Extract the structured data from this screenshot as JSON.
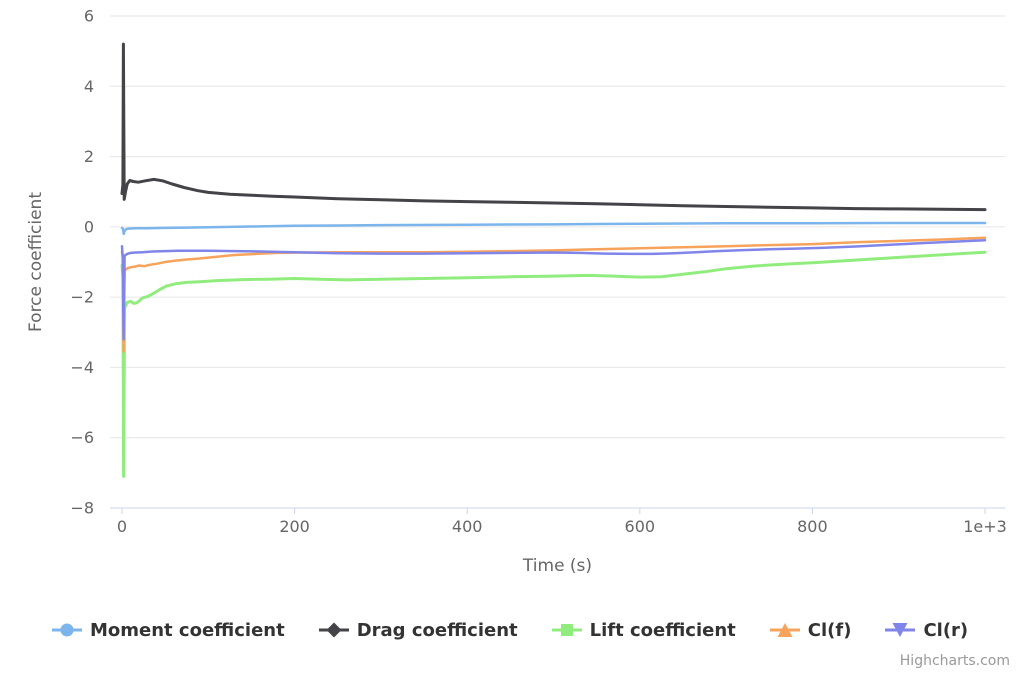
{
  "credits": {
    "label": "Highcharts.com"
  },
  "chart_data": {
    "type": "line",
    "title": "",
    "xlabel": "Time (s)",
    "ylabel": "Force coefficient",
    "xlim": [
      0,
      1000
    ],
    "ylim": [
      -8,
      6
    ],
    "grid": "horizontal",
    "grid_color": "#e6e6e6",
    "axis_line_color": "#ccd6eb",
    "tick_label_color": "#666666",
    "legend_position": "bottom",
    "xticks": [
      {
        "value": 0,
        "label": "0"
      },
      {
        "value": 200,
        "label": "200"
      },
      {
        "value": 400,
        "label": "400"
      },
      {
        "value": 600,
        "label": "600"
      },
      {
        "value": 800,
        "label": "800"
      },
      {
        "value": 1000,
        "label": "1e+3"
      }
    ],
    "yticks": [
      {
        "value": 6,
        "label": "6"
      },
      {
        "value": 4,
        "label": "4"
      },
      {
        "value": 2,
        "label": "2"
      },
      {
        "value": 0,
        "label": "0"
      },
      {
        "value": -2,
        "label": "−2"
      },
      {
        "value": -4,
        "label": "−4"
      },
      {
        "value": -6,
        "label": "−6"
      },
      {
        "value": -8,
        "label": "−8"
      }
    ],
    "series": [
      {
        "name": "Moment coefficient",
        "color": "#7cb5ec",
        "marker": "circle",
        "line_width": 2.5,
        "points": [
          [
            0,
            -0.03
          ],
          [
            1,
            -0.05
          ],
          [
            2,
            -0.2
          ],
          [
            3,
            -0.12
          ],
          [
            5,
            -0.06
          ],
          [
            8,
            -0.05
          ],
          [
            15,
            -0.04
          ],
          [
            30,
            -0.04
          ],
          [
            50,
            -0.03
          ],
          [
            75,
            -0.02
          ],
          [
            100,
            -0.01
          ],
          [
            150,
            0.01
          ],
          [
            200,
            0.03
          ],
          [
            250,
            0.04
          ],
          [
            300,
            0.05
          ],
          [
            400,
            0.06
          ],
          [
            500,
            0.07
          ],
          [
            550,
            0.08
          ],
          [
            600,
            0.09
          ],
          [
            700,
            0.1
          ],
          [
            800,
            0.1
          ],
          [
            900,
            0.11
          ],
          [
            1000,
            0.11
          ]
        ]
      },
      {
        "name": "Drag coefficient",
        "color": "#434348",
        "marker": "diamond",
        "line_width": 3,
        "points": [
          [
            0,
            0.95
          ],
          [
            1,
            1.2
          ],
          [
            1.6,
            5.2
          ],
          [
            2.6,
            0.78
          ],
          [
            4,
            1.0
          ],
          [
            6,
            1.22
          ],
          [
            9,
            1.32
          ],
          [
            13,
            1.29
          ],
          [
            19,
            1.27
          ],
          [
            27,
            1.31
          ],
          [
            37,
            1.35
          ],
          [
            47,
            1.31
          ],
          [
            58,
            1.22
          ],
          [
            72,
            1.12
          ],
          [
            88,
            1.03
          ],
          [
            100,
            0.98
          ],
          [
            125,
            0.93
          ],
          [
            150,
            0.9
          ],
          [
            175,
            0.87
          ],
          [
            200,
            0.85
          ],
          [
            250,
            0.8
          ],
          [
            300,
            0.77
          ],
          [
            350,
            0.74
          ],
          [
            400,
            0.72
          ],
          [
            450,
            0.7
          ],
          [
            500,
            0.68
          ],
          [
            550,
            0.66
          ],
          [
            600,
            0.63
          ],
          [
            650,
            0.6
          ],
          [
            700,
            0.58
          ],
          [
            750,
            0.56
          ],
          [
            800,
            0.54
          ],
          [
            850,
            0.52
          ],
          [
            900,
            0.51
          ],
          [
            950,
            0.5
          ],
          [
            1000,
            0.49
          ]
        ]
      },
      {
        "name": "Lift coefficient",
        "color": "#90ed7d",
        "marker": "square",
        "line_width": 3,
        "points": [
          [
            0,
            -1.1
          ],
          [
            1,
            -1.4
          ],
          [
            1.8,
            -7.1
          ],
          [
            3,
            -2.3
          ],
          [
            6,
            -2.15
          ],
          [
            10,
            -2.12
          ],
          [
            14,
            -2.18
          ],
          [
            18,
            -2.15
          ],
          [
            24,
            -2.02
          ],
          [
            30,
            -1.98
          ],
          [
            36,
            -1.9
          ],
          [
            44,
            -1.78
          ],
          [
            52,
            -1.68
          ],
          [
            62,
            -1.62
          ],
          [
            75,
            -1.58
          ],
          [
            90,
            -1.56
          ],
          [
            110,
            -1.53
          ],
          [
            140,
            -1.5
          ],
          [
            170,
            -1.49
          ],
          [
            200,
            -1.47
          ],
          [
            230,
            -1.49
          ],
          [
            260,
            -1.51
          ],
          [
            300,
            -1.49
          ],
          [
            350,
            -1.47
          ],
          [
            400,
            -1.45
          ],
          [
            450,
            -1.42
          ],
          [
            500,
            -1.4
          ],
          [
            540,
            -1.38
          ],
          [
            570,
            -1.4
          ],
          [
            600,
            -1.43
          ],
          [
            625,
            -1.42
          ],
          [
            650,
            -1.35
          ],
          [
            675,
            -1.28
          ],
          [
            700,
            -1.19
          ],
          [
            730,
            -1.12
          ],
          [
            760,
            -1.07
          ],
          [
            800,
            -1.02
          ],
          [
            840,
            -0.96
          ],
          [
            880,
            -0.9
          ],
          [
            920,
            -0.84
          ],
          [
            960,
            -0.78
          ],
          [
            1000,
            -0.72
          ]
        ]
      },
      {
        "name": "Cl(f)",
        "color": "#f7a35c",
        "marker": "triangle",
        "line_width": 2.5,
        "points": [
          [
            0,
            -0.7
          ],
          [
            1,
            -0.85
          ],
          [
            1.8,
            -3.55
          ],
          [
            3,
            -1.25
          ],
          [
            6,
            -1.18
          ],
          [
            10,
            -1.15
          ],
          [
            15,
            -1.13
          ],
          [
            20,
            -1.1
          ],
          [
            26,
            -1.12
          ],
          [
            32,
            -1.08
          ],
          [
            40,
            -1.05
          ],
          [
            50,
            -1.0
          ],
          [
            62,
            -0.96
          ],
          [
            75,
            -0.93
          ],
          [
            90,
            -0.9
          ],
          [
            110,
            -0.85
          ],
          [
            130,
            -0.8
          ],
          [
            155,
            -0.77
          ],
          [
            180,
            -0.74
          ],
          [
            210,
            -0.73
          ],
          [
            250,
            -0.72
          ],
          [
            300,
            -0.72
          ],
          [
            350,
            -0.72
          ],
          [
            400,
            -0.71
          ],
          [
            450,
            -0.69
          ],
          [
            500,
            -0.67
          ],
          [
            550,
            -0.64
          ],
          [
            600,
            -0.61
          ],
          [
            650,
            -0.58
          ],
          [
            700,
            -0.55
          ],
          [
            750,
            -0.52
          ],
          [
            800,
            -0.49
          ],
          [
            850,
            -0.44
          ],
          [
            900,
            -0.4
          ],
          [
            950,
            -0.36
          ],
          [
            1000,
            -0.31
          ]
        ]
      },
      {
        "name": "Cl(r)",
        "color": "#8085e9",
        "marker": "triangle-down",
        "line_width": 2.5,
        "points": [
          [
            0,
            -0.55
          ],
          [
            0.8,
            -0.9
          ],
          [
            1.8,
            -3.2
          ],
          [
            3,
            -0.82
          ],
          [
            6,
            -0.77
          ],
          [
            10,
            -0.74
          ],
          [
            16,
            -0.73
          ],
          [
            24,
            -0.72
          ],
          [
            35,
            -0.7
          ],
          [
            50,
            -0.69
          ],
          [
            65,
            -0.68
          ],
          [
            80,
            -0.68
          ],
          [
            100,
            -0.68
          ],
          [
            130,
            -0.69
          ],
          [
            160,
            -0.7
          ],
          [
            200,
            -0.72
          ],
          [
            250,
            -0.75
          ],
          [
            300,
            -0.76
          ],
          [
            350,
            -0.76
          ],
          [
            400,
            -0.75
          ],
          [
            450,
            -0.74
          ],
          [
            500,
            -0.73
          ],
          [
            530,
            -0.74
          ],
          [
            560,
            -0.76
          ],
          [
            590,
            -0.77
          ],
          [
            615,
            -0.77
          ],
          [
            640,
            -0.75
          ],
          [
            665,
            -0.72
          ],
          [
            690,
            -0.69
          ],
          [
            720,
            -0.66
          ],
          [
            750,
            -0.64
          ],
          [
            780,
            -0.62
          ],
          [
            810,
            -0.6
          ],
          [
            850,
            -0.56
          ],
          [
            890,
            -0.51
          ],
          [
            930,
            -0.46
          ],
          [
            965,
            -0.42
          ],
          [
            1000,
            -0.38
          ]
        ]
      }
    ]
  }
}
